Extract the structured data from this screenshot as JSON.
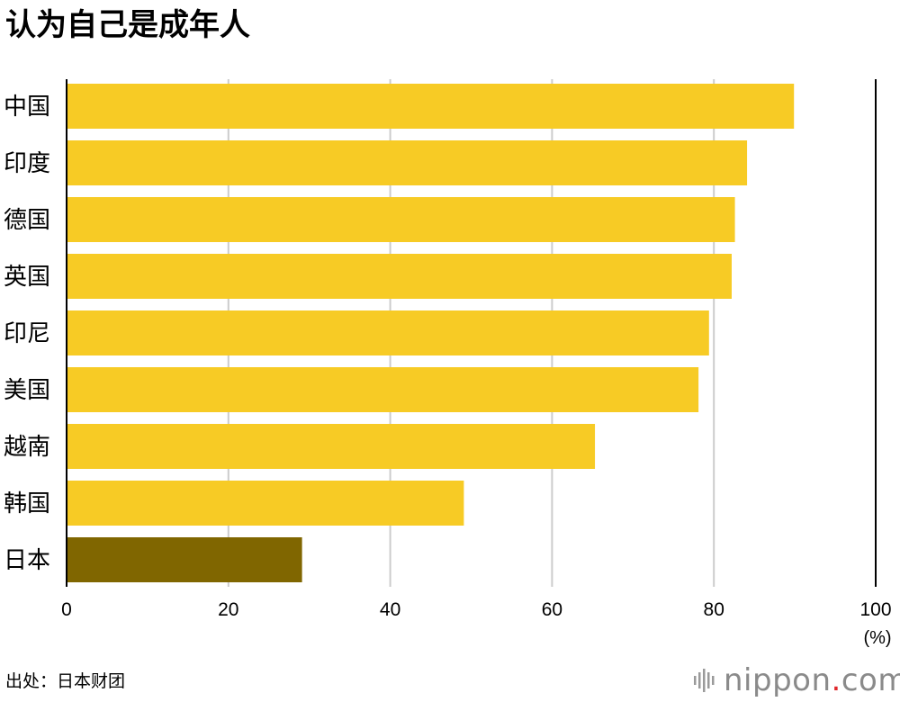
{
  "title": "认为自己是成年人",
  "source": "出处：日本财团",
  "logo": {
    "name": "nippon",
    "dot": ".",
    "tld": "com",
    "icon": "sound-wave-icon"
  },
  "colors": {
    "bar": "#F7CB25",
    "highlight": "#806600",
    "grid": "#cccccc",
    "axis": "#000000",
    "logo_gray": "#8a8a8a",
    "logo_dot": "#e0262a"
  },
  "chart_data": {
    "type": "bar",
    "orientation": "horizontal",
    "categories": [
      "中国",
      "印度",
      "德国",
      "英国",
      "印尼",
      "美国",
      "越南",
      "韩国",
      "日本"
    ],
    "values": [
      89.9,
      84.1,
      82.6,
      82.2,
      79.4,
      78.1,
      65.3,
      49.1,
      29.1
    ],
    "highlight_category": "日本",
    "xlim": [
      0,
      100
    ],
    "xticks": [
      0,
      20,
      40,
      60,
      80,
      100
    ],
    "unit_label": "(%)",
    "grid": true
  }
}
